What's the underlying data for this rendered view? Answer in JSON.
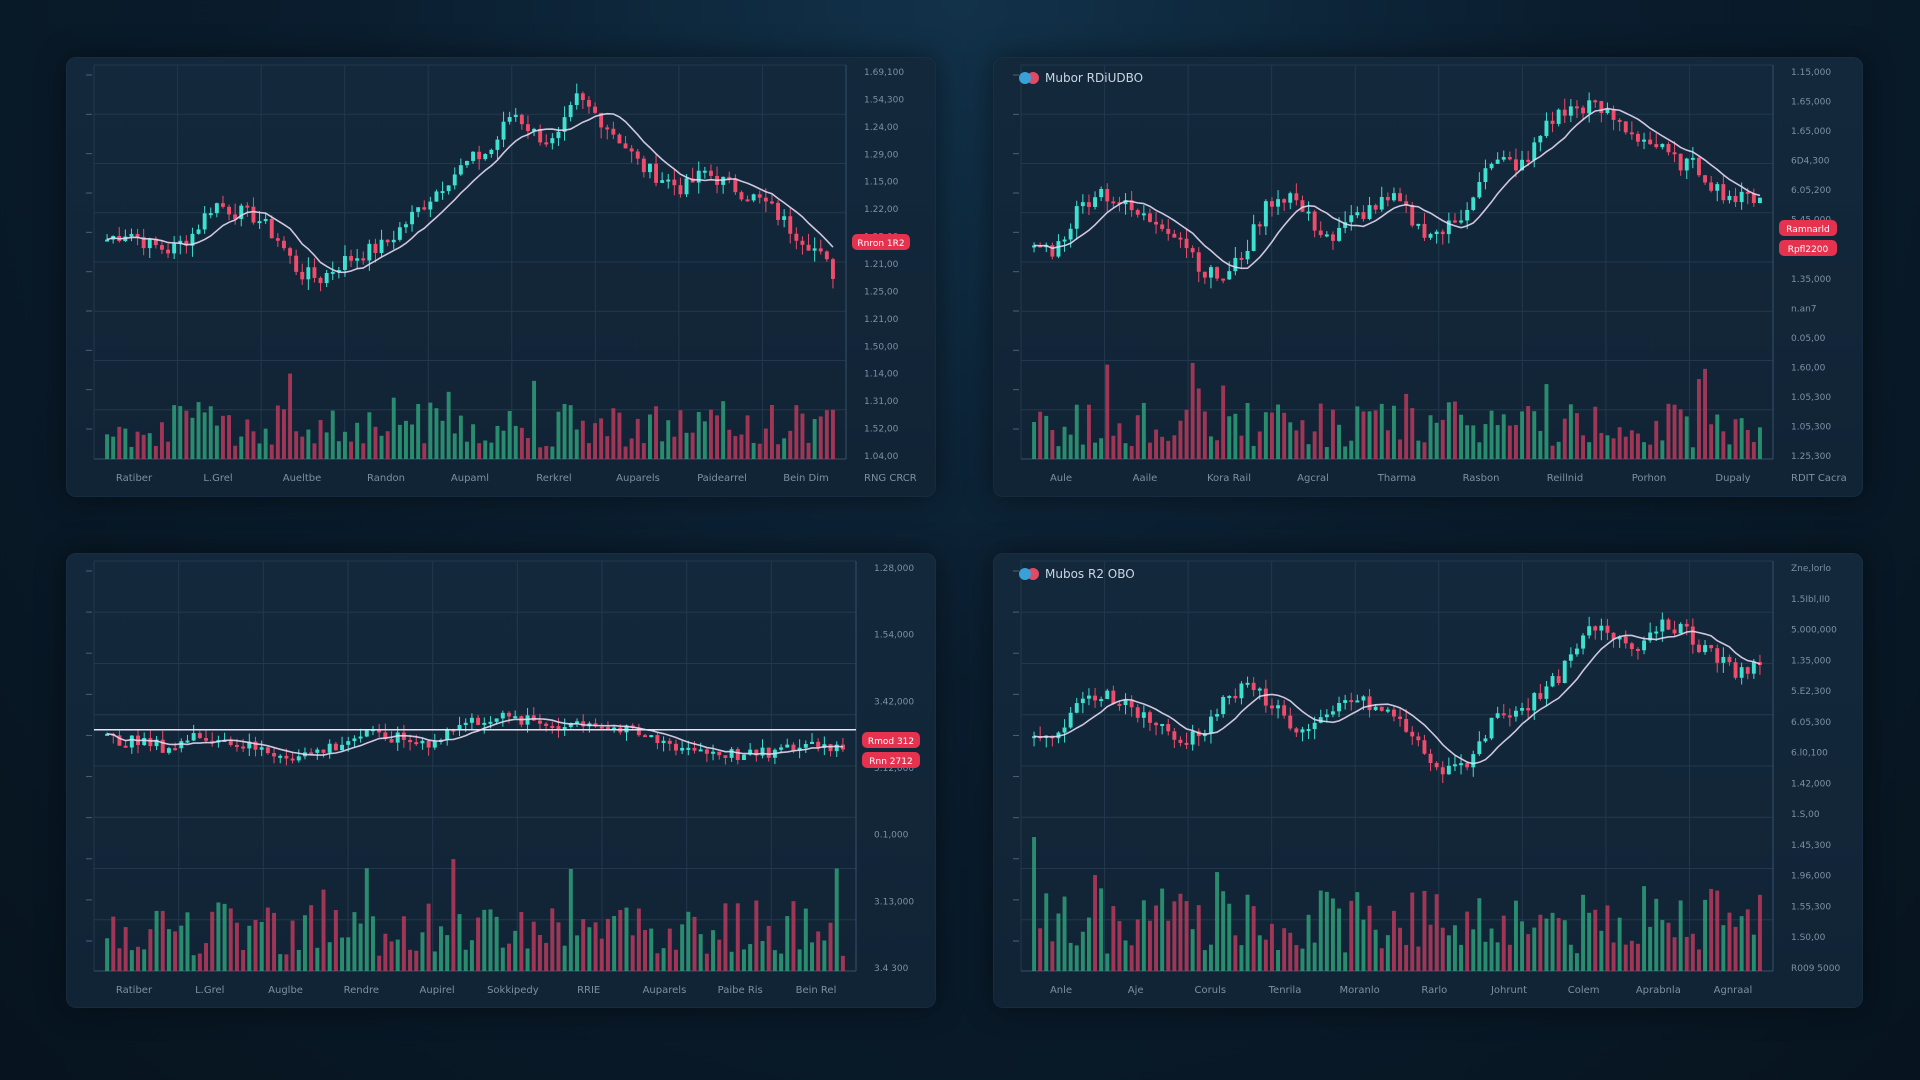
{
  "colors": {
    "up": "#3ee0d0",
    "down": "#ef4b6a",
    "vol_up": "#2f9f78",
    "vol_down": "#b83a5a",
    "ma": "#e3d8f2",
    "badge": "#e5334f"
  },
  "chart_data": [
    {
      "type": "candlestick",
      "title": "",
      "y_ticks": [
        "1.69,100",
        "1.54,300",
        "1.24,00",
        "1.29,00",
        "1.15,00",
        "1.22,00",
        "1.25,00",
        "1.21,00",
        "1.25,00",
        "1.21,00",
        "1.50,00",
        "1.14,00",
        "1.31,00",
        "1.52,00",
        "1.04,00"
      ],
      "x_ticks": [
        "Ratiber",
        "L.Grel",
        "Aueltbe",
        "Randon",
        "Aupaml",
        "Rerkrel",
        "Auparels",
        "Paidearrel",
        "Bein Dim"
      ],
      "corner_label": "RNG CRCR",
      "price_badges": [
        "Rnron 1R2"
      ],
      "series": [
        {
          "name": "price",
          "close": [
            0.42,
            0.45,
            0.4,
            0.38,
            0.44,
            0.55,
            0.52,
            0.5,
            0.42,
            0.3,
            0.28,
            0.34,
            0.37,
            0.4,
            0.48,
            0.56,
            0.64,
            0.7,
            0.74,
            0.88,
            0.8,
            0.76,
            0.92,
            0.86,
            0.78,
            0.68,
            0.64,
            0.6,
            0.66,
            0.62,
            0.58,
            0.54,
            0.46,
            0.4,
            0.3
          ]
        }
      ]
    },
    {
      "type": "candlestick",
      "title": "Mubor RDiUDBO",
      "y_ticks": [
        "1.15,000",
        "1.65,000",
        "1.65,000",
        "6D4,300",
        "6.05,200",
        "5,45,000",
        "1.25,000",
        "1.35,000",
        "n.an7",
        "0.05,00",
        "1.60,00",
        "1.05,300",
        "1.05,300",
        "1.25,300"
      ],
      "x_ticks": [
        "Aule",
        "Aaile",
        "Kora Rail",
        "Agcral",
        "Tharma",
        "Rasbon",
        "Reillnid",
        "Porhon",
        "Dupaly"
      ],
      "corner_label": "RDIT Cacra",
      "price_badges": [
        "Ramnarld",
        "Rpfl2200"
      ],
      "series": [
        {
          "name": "price",
          "close": [
            0.4,
            0.38,
            0.52,
            0.6,
            0.55,
            0.5,
            0.48,
            0.42,
            0.3,
            0.28,
            0.4,
            0.56,
            0.58,
            0.48,
            0.42,
            0.5,
            0.54,
            0.56,
            0.46,
            0.44,
            0.5,
            0.66,
            0.7,
            0.68,
            0.84,
            0.88,
            0.9,
            0.86,
            0.8,
            0.76,
            0.7,
            0.68,
            0.6,
            0.56,
            0.58
          ]
        }
      ]
    },
    {
      "type": "candlestick",
      "title": "",
      "y_ticks": [
        "1.28,000",
        "1.54,000",
        "3.42,000",
        "5.12,000",
        "0.1,000",
        "3.13,000",
        "3.4 300"
      ],
      "x_ticks": [
        "Ratiber",
        "L.Grel",
        "Auglbe",
        "Rendre",
        "Aupirel",
        "Sokkipedy",
        "RRIE",
        "Auparels",
        "Paibe Ris",
        "Bein Rel"
      ],
      "corner_label": "",
      "price_badges": [
        "Rmod 312",
        "Rnn 2712"
      ],
      "series": [
        {
          "name": "price",
          "close": [
            0.52,
            0.5,
            0.48,
            0.54,
            0.5,
            0.46,
            0.44,
            0.48,
            0.54,
            0.52,
            0.5,
            0.58,
            0.62,
            0.6,
            0.58,
            0.6,
            0.56,
            0.52,
            0.48,
            0.46,
            0.44,
            0.46,
            0.5,
            0.48
          ]
        }
      ]
    },
    {
      "type": "candlestick",
      "title": "Mubos R2 OBO",
      "y_ticks": [
        "Zne,lorlo",
        "1.5Ibl,Il0",
        "5.000,000",
        "1.35,000",
        "5.E2,300",
        "6.05,300",
        "6.l0,100",
        "1.42,000",
        "1.S,00",
        "1.45,300",
        "1.96,000",
        "1.55,300",
        "1.S0,00",
        "R009 5000"
      ],
      "x_ticks": [
        "Anle",
        "Aje",
        "Coruls",
        "Tenrila",
        "Moranlo",
        "Rarlo",
        "Johrunt",
        "Colem",
        "Aprabnla",
        "Agnraal"
      ],
      "corner_label": "",
      "price_badges": [],
      "series": [
        {
          "name": "price",
          "close": [
            0.42,
            0.46,
            0.58,
            0.62,
            0.56,
            0.5,
            0.42,
            0.48,
            0.6,
            0.64,
            0.56,
            0.46,
            0.5,
            0.6,
            0.56,
            0.52,
            0.4,
            0.3,
            0.36,
            0.52,
            0.56,
            0.6,
            0.72,
            0.86,
            0.84,
            0.8,
            0.9,
            0.84,
            0.76,
            0.7,
            0.72
          ]
        }
      ]
    }
  ]
}
